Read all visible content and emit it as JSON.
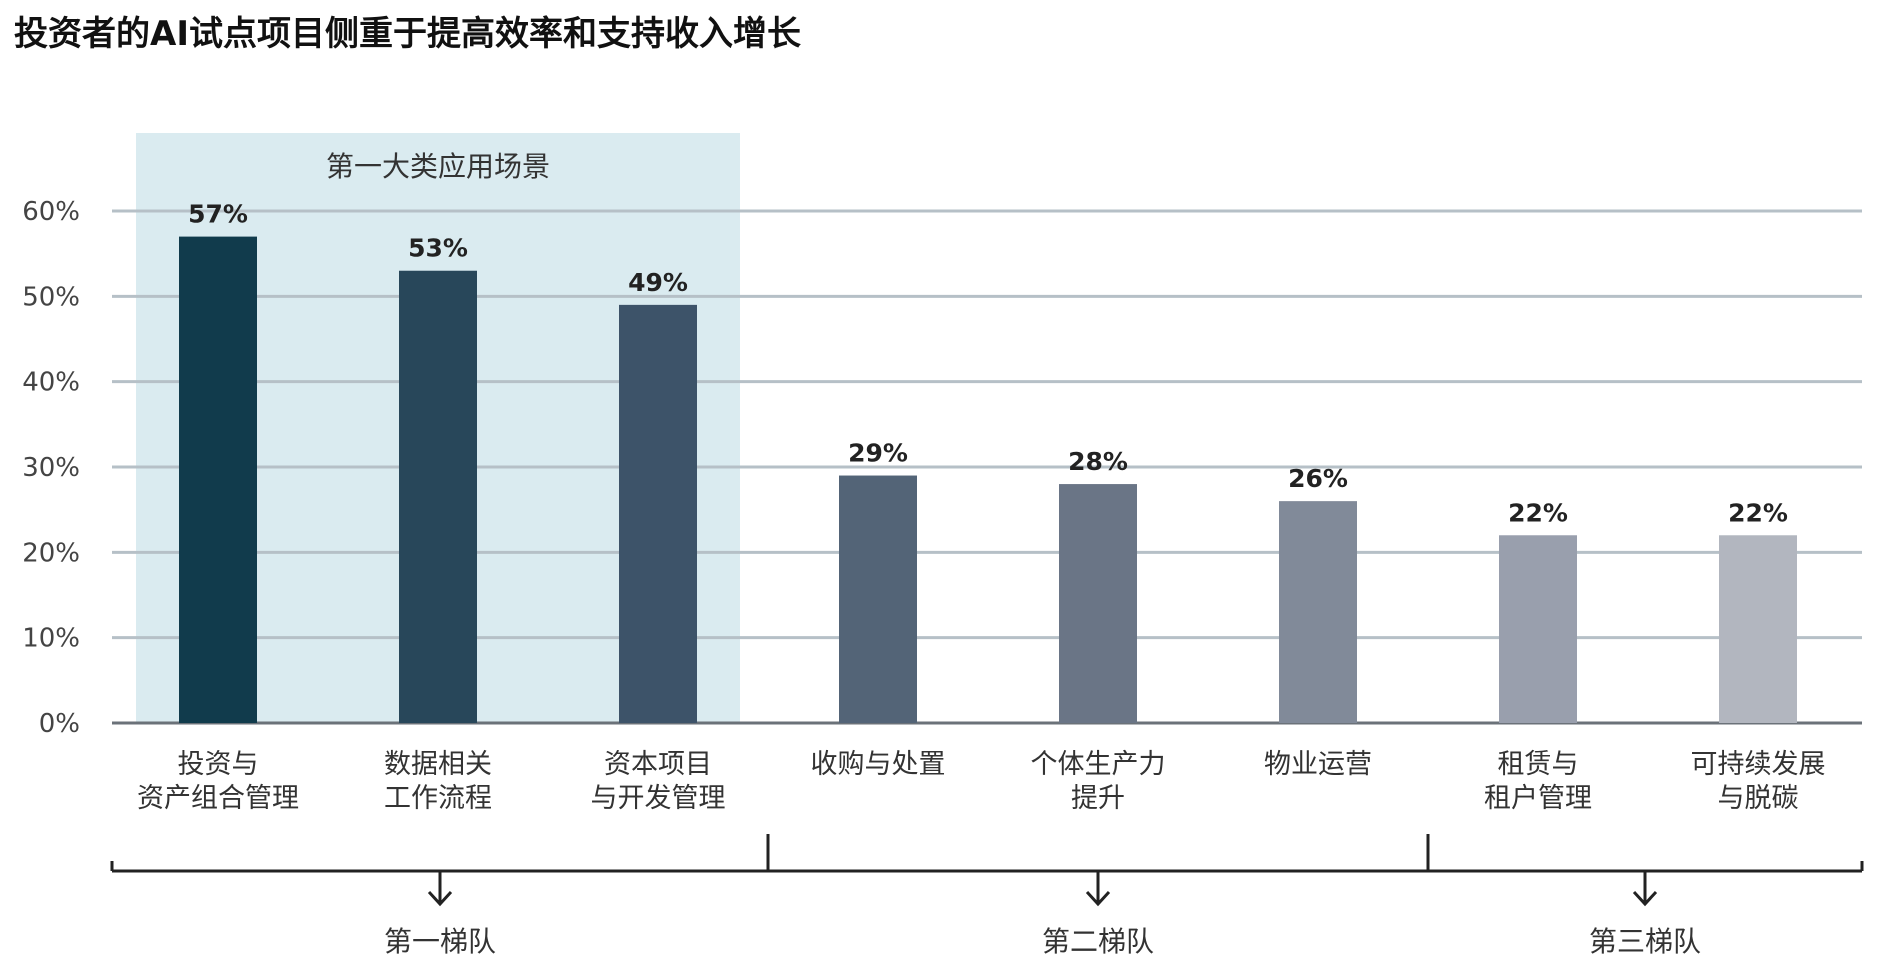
{
  "chart_data": {
    "type": "bar",
    "title": "投资者的AI试点项目侧重于提高效率和支持收入增长",
    "xlabel": "",
    "ylabel": "",
    "ylim": [
      0,
      60
    ],
    "yticks": [
      0,
      10,
      20,
      30,
      40,
      50,
      60
    ],
    "ytick_labels": [
      "0%",
      "10%",
      "20%",
      "30%",
      "40%",
      "50%",
      "60%"
    ],
    "grid": true,
    "categories": [
      [
        "投资与",
        "资产组合管理"
      ],
      [
        "数据相关",
        "工作流程"
      ],
      [
        "资本项目",
        "与开发管理"
      ],
      [
        "收购与处置"
      ],
      [
        "个体生产力",
        "提升"
      ],
      [
        "物业运营"
      ],
      [
        "租赁与",
        "租户管理"
      ],
      [
        "可持续发展",
        "与脱碳"
      ]
    ],
    "values": [
      57,
      53,
      49,
      29,
      28,
      26,
      22,
      22
    ],
    "value_labels": [
      "57%",
      "53%",
      "49%",
      "29%",
      "28%",
      "26%",
      "22%",
      "22%"
    ],
    "bar_colors": [
      "#113b4c",
      "#28475a",
      "#3d5369",
      "#536477",
      "#6a7586",
      "#818a99",
      "#999fad",
      "#b2b6bf"
    ],
    "highlight_band": {
      "label": "第一大类应用场景",
      "categories": [
        0,
        1,
        2
      ],
      "color": "#daebf0"
    },
    "tiers": [
      {
        "label": "第一梯队",
        "categories": [
          0,
          1,
          2
        ]
      },
      {
        "label": "第二梯队",
        "categories": [
          3,
          4,
          5
        ]
      },
      {
        "label": "第三梯队",
        "categories": [
          6,
          7
        ]
      }
    ]
  }
}
